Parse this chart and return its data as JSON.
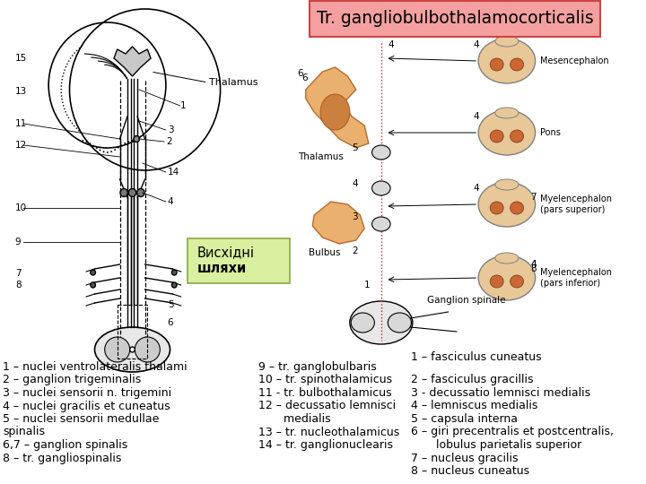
{
  "title": "Tr. gangliobulbothalamocorticalis",
  "title_bg": "#f4a0a0",
  "title_border": "#cc4444",
  "box_bg": "#d8f0a0",
  "box_border": "#88aa44",
  "box_text_line1": "Висхідні",
  "box_text_line2": "шляхи",
  "bg_color": "#ffffff",
  "left_labels": [
    "1 – nuclei ventrolateralis thalami",
    "2 – ganglion trigeminalis",
    "3 – nuclei sensorii n. trigemini",
    "4 – nuclei gracilis et cuneatus",
    "5 – nuclei sensorii medullae",
    "spinalis",
    "6,7 – ganglion spinalis",
    "8 – tr. gangliospinalis"
  ],
  "mid_labels": [
    "9 – tr. ganglobulbaris",
    "10 – tr. spinothalamicus",
    "11 - tr. bulbothalamicus",
    "12 – decussatio lemnisci",
    "       medialis",
    "13 – tr. nucleothalamicus",
    "14 – tr. ganglionuclearis"
  ],
  "right_header": "1 – fasciculus cuneatus",
  "right_labels": [
    "2 – fasciculus gracillis",
    "3 - decussatio lemnisci medialis",
    "4 – lemniscus medialis",
    "5 – capsula interna",
    "6 – giri precentralis et postcentralis,",
    "       lobulus parietalis superior",
    "7 – nucleus gracilis",
    "8 – nucleus cuneatus"
  ],
  "text_fontsize": 9,
  "title_fontsize": 13.5
}
